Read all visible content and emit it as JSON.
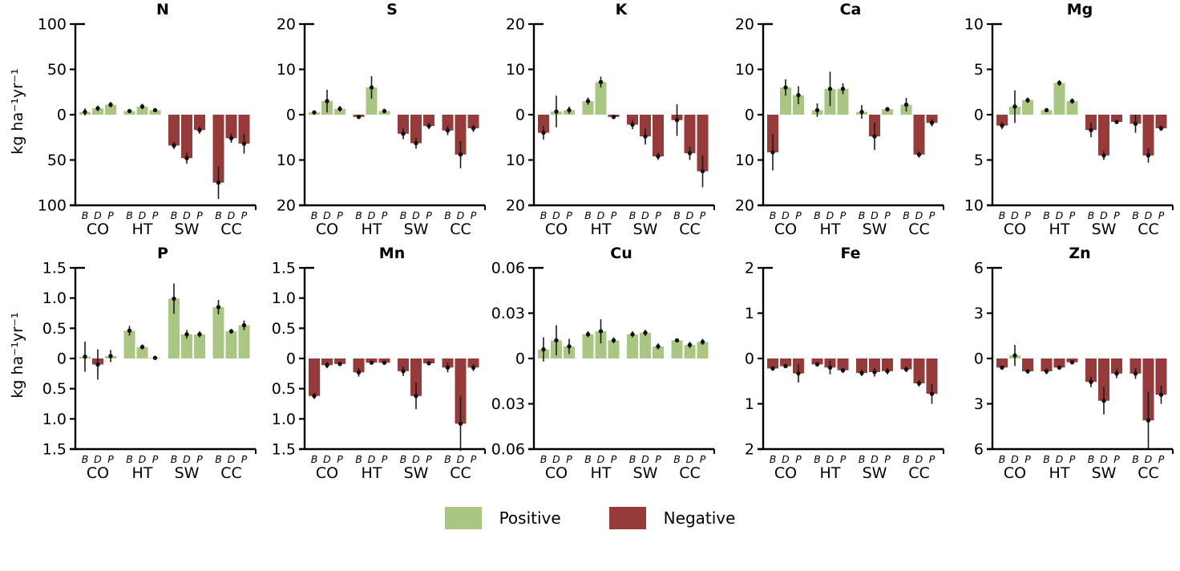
{
  "figure": {
    "ylabel": "kg ha⁻¹yr⁻¹",
    "legend": {
      "positive_label": "Positive",
      "negative_label": "Negative"
    },
    "colors": {
      "positive": "#a9c783",
      "negative": "#963a3a",
      "axis": "#000000",
      "error_bar": "#1c1c1c"
    }
  },
  "chart_data": [
    {
      "type": "bar",
      "title": "N",
      "ylim": [
        -100,
        100
      ],
      "ytick_values": [
        100,
        50,
        0,
        -50,
        -100
      ],
      "ytick_labels": [
        "100",
        "50",
        "0",
        "50",
        "100"
      ],
      "groups": [
        "CO",
        "HT",
        "SW",
        "CC"
      ],
      "bar_labels": [
        "B",
        "D",
        "P"
      ],
      "values": [
        3,
        7,
        11,
        4,
        9,
        5,
        -34,
        -48,
        -17,
        -75,
        -26,
        -32
      ],
      "errors": [
        4,
        3,
        3,
        2,
        3,
        2,
        4,
        6,
        4,
        18,
        5,
        11
      ]
    },
    {
      "type": "bar",
      "title": "S",
      "ylim": [
        -20,
        20
      ],
      "ytick_values": [
        20,
        10,
        0,
        -10,
        -20
      ],
      "ytick_labels": [
        "20",
        "10",
        "0",
        "10",
        "20"
      ],
      "groups": [
        "CO",
        "HT",
        "SW",
        "CC"
      ],
      "bar_labels": [
        "B",
        "D",
        "P"
      ],
      "values": [
        0.5,
        3,
        1.3,
        -0.5,
        6,
        0.8,
        -4.2,
        -6.3,
        -2.5,
        -3.5,
        -8.8,
        -3
      ],
      "errors": [
        0.4,
        2.5,
        0.6,
        0.3,
        2.5,
        0.5,
        1.2,
        1.2,
        0.7,
        1,
        3,
        0.8
      ]
    },
    {
      "type": "bar",
      "title": "K",
      "ylim": [
        -20,
        20
      ],
      "ytick_values": [
        20,
        10,
        0,
        -10,
        -20
      ],
      "ytick_labels": [
        "20",
        "10",
        "0",
        "10",
        "20"
      ],
      "groups": [
        "CO",
        "HT",
        "SW",
        "CC"
      ],
      "bar_labels": [
        "B",
        "D",
        "P"
      ],
      "values": [
        -4,
        0.7,
        1,
        3,
        7.2,
        -0.5,
        -2.2,
        -4.8,
        -9.2,
        -1.2,
        -8.5,
        -12.5
      ],
      "errors": [
        1.5,
        3.5,
        0.8,
        0.8,
        1.2,
        0.5,
        1,
        1.8,
        0.8,
        3.5,
        1.5,
        3.5
      ]
    },
    {
      "type": "bar",
      "title": "Ca",
      "ylim": [
        -20,
        20
      ],
      "ytick_values": [
        20,
        10,
        0,
        -10,
        -20
      ],
      "ytick_labels": [
        "20",
        "10",
        "0",
        "10",
        "20"
      ],
      "groups": [
        "CO",
        "HT",
        "SW",
        "CC"
      ],
      "bar_labels": [
        "B",
        "D",
        "P"
      ],
      "values": [
        -8.3,
        6,
        4.3,
        1,
        5.7,
        5.7,
        0.6,
        -4.8,
        1.2,
        2.2,
        -8.8,
        -1.8
      ],
      "errors": [
        4,
        1.8,
        2,
        1.5,
        3.8,
        1.2,
        1.5,
        3,
        0.5,
        1.5,
        0.7,
        0.8
      ]
    },
    {
      "type": "bar",
      "title": "Mg",
      "ylim": [
        -10,
        10
      ],
      "ytick_values": [
        10,
        5,
        0,
        -5,
        -10
      ],
      "ytick_labels": [
        "10",
        "5",
        "0",
        "5",
        "10"
      ],
      "groups": [
        "CO",
        "HT",
        "SW",
        "CC"
      ],
      "bar_labels": [
        "B",
        "D",
        "P"
      ],
      "values": [
        -1.2,
        0.9,
        1.6,
        0.5,
        3.5,
        1.5,
        -1.7,
        -4.5,
        -0.8,
        -1,
        -4.5,
        -1.5
      ],
      "errors": [
        0.4,
        1.8,
        0.3,
        0.2,
        0.3,
        0.3,
        0.8,
        0.5,
        0.2,
        1,
        0.8,
        0.3
      ]
    },
    {
      "type": "bar",
      "title": "P",
      "ylim": [
        -1.5,
        1.5
      ],
      "ytick_values": [
        1.5,
        1.0,
        0.5,
        0,
        -0.5,
        -1.0,
        -1.5
      ],
      "ytick_labels": [
        "1.5",
        "1.0",
        "0.5",
        "0",
        "0.5",
        "1.0",
        "1.5"
      ],
      "groups": [
        "CO",
        "HT",
        "SW",
        "CC"
      ],
      "bar_labels": [
        "B",
        "D",
        "P"
      ],
      "values": [
        0.03,
        -0.1,
        0.04,
        0.46,
        0.19,
        0.01,
        0.99,
        0.4,
        0.4,
        0.85,
        0.45,
        0.55
      ],
      "errors": [
        0.25,
        0.25,
        0.1,
        0.08,
        0.04,
        0.02,
        0.25,
        0.07,
        0.05,
        0.12,
        0.04,
        0.08
      ]
    },
    {
      "type": "bar",
      "title": "Mn",
      "ylim": [
        -1.5,
        1.5
      ],
      "ytick_values": [
        1.5,
        1.0,
        0.5,
        0,
        -0.5,
        -1.0,
        -1.5
      ],
      "ytick_labels": [
        "1.5",
        "1.0",
        "0.5",
        "0",
        "0.5",
        "1.0",
        "1.5"
      ],
      "groups": [
        "CO",
        "HT",
        "SW",
        "CC"
      ],
      "bar_labels": [
        "B",
        "D",
        "P"
      ],
      "values": [
        -0.62,
        -0.11,
        -0.09,
        -0.23,
        -0.07,
        -0.07,
        -0.21,
        -0.62,
        -0.08,
        -0.15,
        -1.08,
        -0.15
      ],
      "errors": [
        0.05,
        0.05,
        0.03,
        0.07,
        0.03,
        0.02,
        0.08,
        0.22,
        0.03,
        0.08,
        0.45,
        0.06
      ]
    },
    {
      "type": "bar",
      "title": "Cu",
      "ylim": [
        -0.06,
        0.06
      ],
      "ytick_values": [
        0.06,
        0.03,
        0,
        -0.03,
        -0.06
      ],
      "ytick_labels": [
        "0.06",
        "0.03",
        "0",
        "0.03",
        "0.06"
      ],
      "groups": [
        "CO",
        "HT",
        "SW",
        "CC"
      ],
      "bar_labels": [
        "B",
        "D",
        "P"
      ],
      "values": [
        0.006,
        0.012,
        0.008,
        0.016,
        0.018,
        0.012,
        0.016,
        0.017,
        0.008,
        0.012,
        0.009,
        0.011
      ],
      "errors": [
        0.008,
        0.01,
        0.005,
        0.002,
        0.008,
        0.002,
        0.002,
        0.002,
        0.002,
        0.001,
        0.002,
        0.002
      ]
    },
    {
      "type": "bar",
      "title": "Fe",
      "ylim": [
        -2,
        2
      ],
      "ytick_values": [
        2,
        1,
        0,
        -1,
        -2
      ],
      "ytick_labels": [
        "2",
        "1",
        "0",
        "1",
        "2"
      ],
      "groups": [
        "CO",
        "HT",
        "SW",
        "CC"
      ],
      "bar_labels": [
        "B",
        "D",
        "P"
      ],
      "values": [
        -0.22,
        -0.17,
        -0.33,
        -0.13,
        -0.2,
        -0.26,
        -0.32,
        -0.3,
        -0.28,
        -0.24,
        -0.55,
        -0.78
      ],
      "errors": [
        0.05,
        0.04,
        0.2,
        0.04,
        0.15,
        0.06,
        0.07,
        0.1,
        0.07,
        0.06,
        0.07,
        0.22
      ]
    },
    {
      "type": "bar",
      "title": "Zn",
      "ylim": [
        -6,
        6
      ],
      "ytick_values": [
        6,
        3,
        0,
        -3,
        -6
      ],
      "ytick_labels": [
        "6",
        "3",
        "0",
        "3",
        "6"
      ],
      "groups": [
        "CO",
        "HT",
        "SW",
        "CC"
      ],
      "bar_labels": [
        "B",
        "D",
        "P"
      ],
      "values": [
        -0.6,
        0.2,
        -0.85,
        -0.85,
        -0.6,
        -0.25,
        -1.55,
        -2.8,
        -1,
        -1,
        -4.1,
        -2.4
      ],
      "errors": [
        0.15,
        0.7,
        0.15,
        0.2,
        0.15,
        0.15,
        0.35,
        0.9,
        0.3,
        0.35,
        1.9,
        0.6
      ]
    }
  ]
}
